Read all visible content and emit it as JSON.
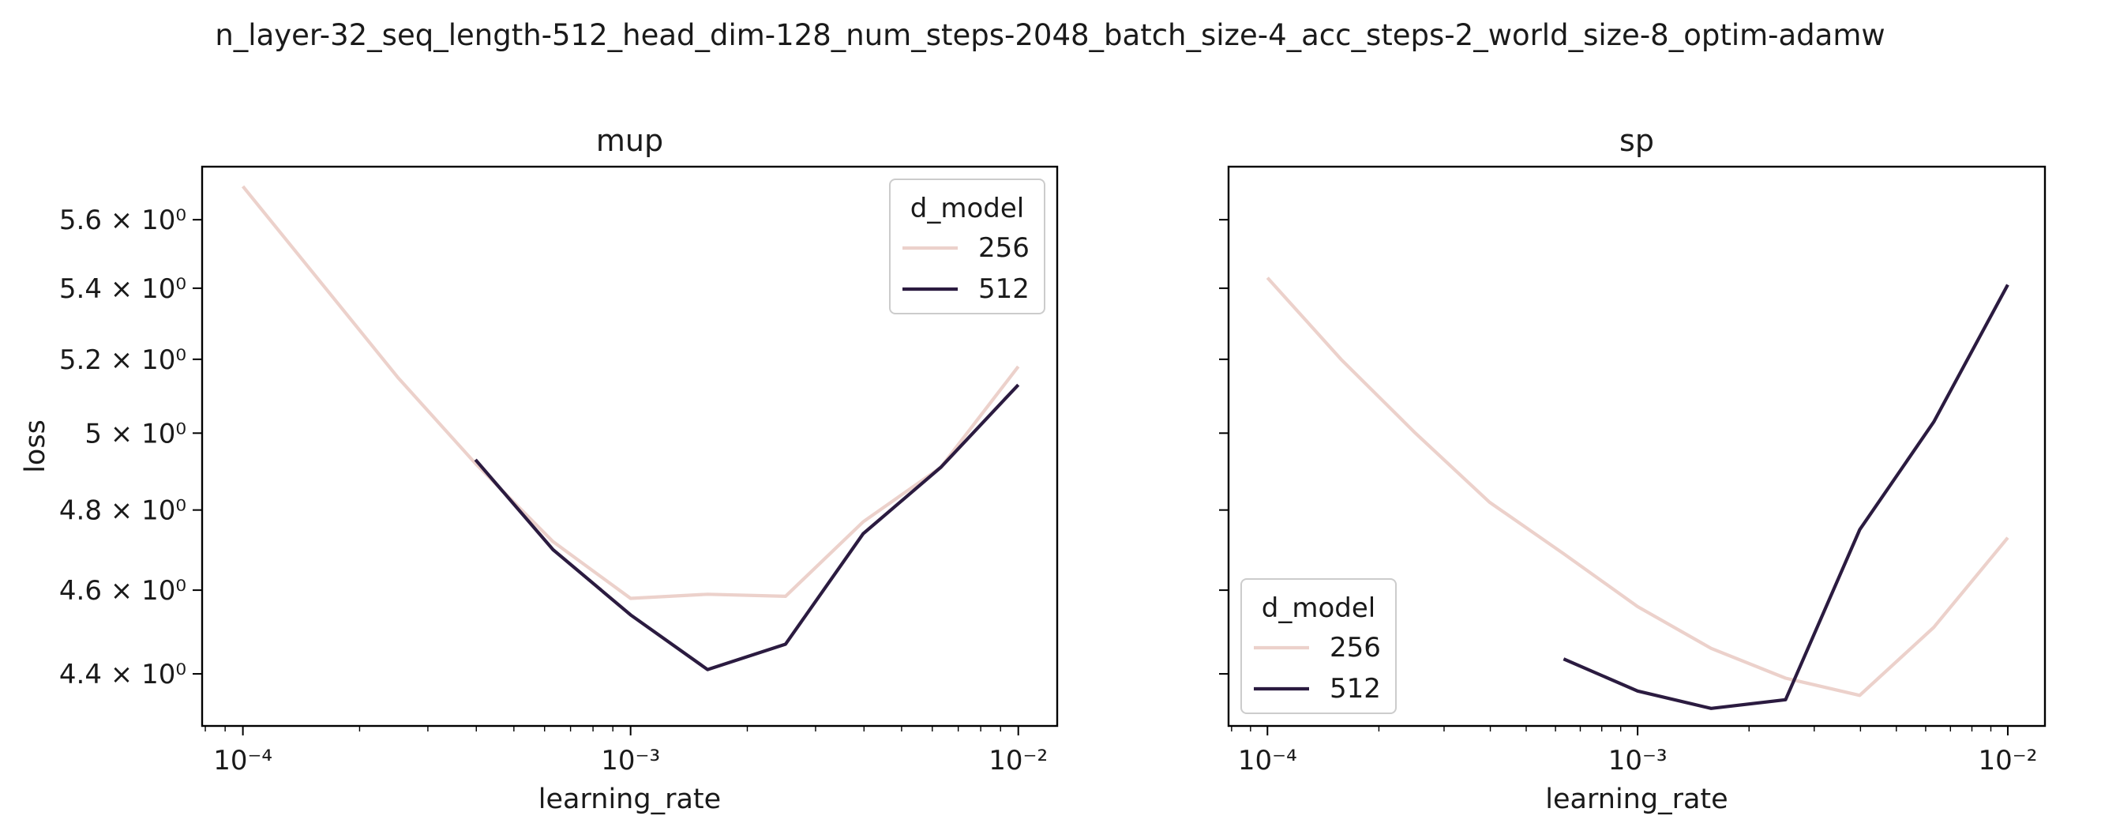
{
  "figure": {
    "suptitle": "n_layer-32_seq_length-512_head_dim-128_num_steps-2048_batch_size-4_acc_steps-2_world_size-8_optim-adamw"
  },
  "chart_data": [
    {
      "type": "line",
      "title": "mup",
      "xlabel": "learning_rate",
      "ylabel": "loss",
      "xscale": "log",
      "yscale": "log",
      "xlim": [
        7.85e-05,
        0.0126
      ],
      "ylim": [
        4.28,
        5.76
      ],
      "xticks": [
        {
          "value": 0.0001,
          "label": "10⁻⁴"
        },
        {
          "value": 0.001,
          "label": "10⁻³"
        },
        {
          "value": 0.01,
          "label": "10⁻²"
        }
      ],
      "yticks": [
        {
          "value": 4.4,
          "label": "4.4 × 10⁰"
        },
        {
          "value": 4.6,
          "label": "4.6 × 10⁰"
        },
        {
          "value": 4.8,
          "label": "4.8 × 10⁰"
        },
        {
          "value": 5.0,
          "label": "5 × 10⁰"
        },
        {
          "value": 5.2,
          "label": "5.2 × 10⁰"
        },
        {
          "value": 5.4,
          "label": "5.4 × 10⁰"
        },
        {
          "value": 5.6,
          "label": "5.6 × 10⁰"
        }
      ],
      "show_ytick_labels": true,
      "grid": false,
      "legend": {
        "title": "d_model",
        "loc": "upper right"
      },
      "series": [
        {
          "name": "256",
          "color": "#ecd1cb",
          "x": [
            0.0001,
            0.000158,
            0.000251,
            0.000398,
            0.000631,
            0.001,
            0.00158,
            0.00251,
            0.00398,
            0.00631,
            0.01
          ],
          "y": [
            5.7,
            5.42,
            5.15,
            4.92,
            4.72,
            4.58,
            4.59,
            4.585,
            4.77,
            4.91,
            5.18
          ]
        },
        {
          "name": "512",
          "color": "#2b1b40",
          "x": [
            0.000398,
            0.000631,
            0.001,
            0.00158,
            0.00251,
            0.00398,
            0.00631,
            0.01
          ],
          "y": [
            4.93,
            4.7,
            4.54,
            4.41,
            4.47,
            4.74,
            4.91,
            5.13
          ]
        }
      ]
    },
    {
      "type": "line",
      "title": "sp",
      "xlabel": "learning_rate",
      "ylabel": "",
      "xscale": "log",
      "yscale": "log",
      "xlim": [
        7.85e-05,
        0.0126
      ],
      "ylim": [
        4.28,
        5.76
      ],
      "xticks": [
        {
          "value": 0.0001,
          "label": "10⁻⁴"
        },
        {
          "value": 0.001,
          "label": "10⁻³"
        },
        {
          "value": 0.01,
          "label": "10⁻²"
        }
      ],
      "yticks": [
        {
          "value": 4.4,
          "label": ""
        },
        {
          "value": 4.6,
          "label": ""
        },
        {
          "value": 4.8,
          "label": ""
        },
        {
          "value": 5.0,
          "label": ""
        },
        {
          "value": 5.2,
          "label": ""
        },
        {
          "value": 5.4,
          "label": ""
        },
        {
          "value": 5.6,
          "label": ""
        }
      ],
      "show_ytick_labels": false,
      "grid": false,
      "legend": {
        "title": "d_model",
        "loc": "lower left"
      },
      "series": [
        {
          "name": "256",
          "color": "#ecd1cb",
          "x": [
            0.0001,
            0.000158,
            0.000251,
            0.000398,
            0.000631,
            0.001,
            0.00158,
            0.00251,
            0.00398,
            0.00631,
            0.01
          ],
          "y": [
            5.43,
            5.2,
            5.0,
            4.82,
            4.69,
            4.56,
            4.46,
            4.39,
            4.35,
            4.51,
            4.73
          ]
        },
        {
          "name": "512",
          "color": "#2b1b40",
          "x": [
            0.000631,
            0.001,
            0.00158,
            0.00251,
            0.00398,
            0.00631,
            0.01
          ],
          "y": [
            4.435,
            4.36,
            4.32,
            4.34,
            4.75,
            5.03,
            5.41
          ]
        }
      ]
    }
  ]
}
